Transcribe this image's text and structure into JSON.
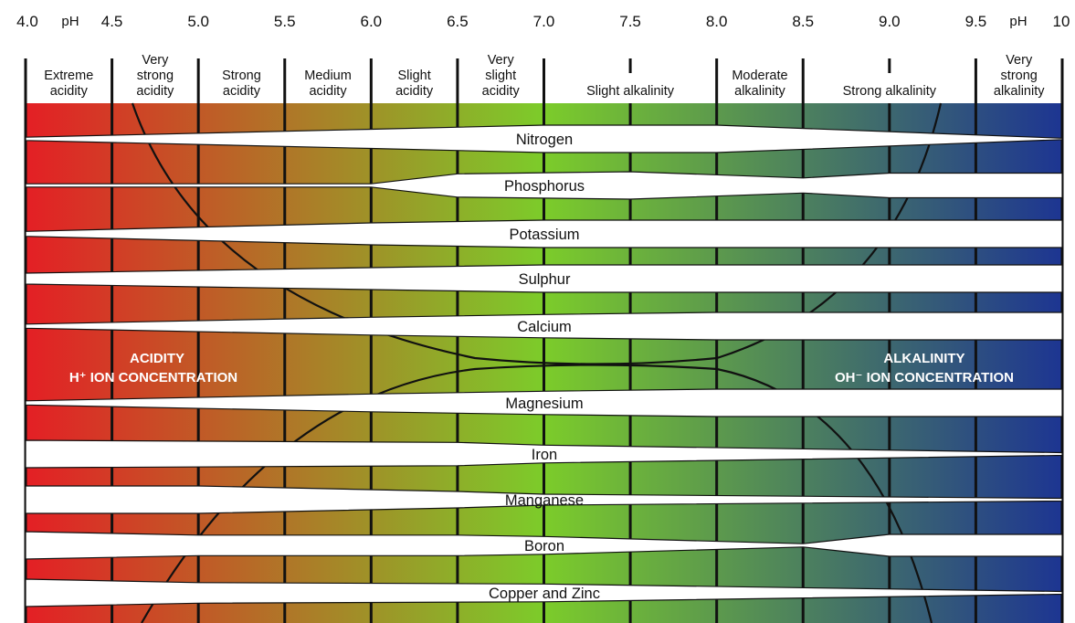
{
  "colors": {
    "acid": "#e41f25",
    "neutral": "#7ccc2a",
    "alkaline": "#1d3592",
    "band": "#ffffff",
    "line": "#111111",
    "inner_text": "#ffffff"
  },
  "ph_ticks": [
    {
      "value": 4.0,
      "label": "4.0"
    },
    {
      "value": 4.5,
      "label": "4.5"
    },
    {
      "value": 5.0,
      "label": "5.0"
    },
    {
      "value": 5.5,
      "label": "5.5"
    },
    {
      "value": 6.0,
      "label": "6.0"
    },
    {
      "value": 6.5,
      "label": "6.5"
    },
    {
      "value": 7.0,
      "label": "7.0"
    },
    {
      "value": 7.5,
      "label": "7.5"
    },
    {
      "value": 8.0,
      "label": "8.0"
    },
    {
      "value": 8.5,
      "label": "8.5"
    },
    {
      "value": 9.0,
      "label": "9.0"
    },
    {
      "value": 9.5,
      "label": "9.5"
    },
    {
      "value": 10.0,
      "label": "10"
    }
  ],
  "ph_labels": {
    "left": "pH",
    "right": "pH"
  },
  "categories": [
    {
      "from": 4.0,
      "to": 4.5,
      "lines": [
        "Extreme",
        "acidity"
      ]
    },
    {
      "from": 4.5,
      "to": 5.0,
      "lines": [
        "Very",
        "strong",
        "acidity"
      ]
    },
    {
      "from": 5.0,
      "to": 5.5,
      "lines": [
        "Strong",
        "acidity"
      ]
    },
    {
      "from": 5.5,
      "to": 6.0,
      "lines": [
        "Medium",
        "acidity"
      ]
    },
    {
      "from": 6.0,
      "to": 6.5,
      "lines": [
        "Slight",
        "acidity"
      ]
    },
    {
      "from": 6.5,
      "to": 7.0,
      "lines": [
        "Very",
        "slight",
        "acidity"
      ]
    },
    {
      "from": 7.0,
      "to": 8.0,
      "lines": [
        "Slight alkalinity"
      ]
    },
    {
      "from": 8.0,
      "to": 8.5,
      "lines": [
        "Moderate",
        "alkalinity"
      ]
    },
    {
      "from": 8.5,
      "to": 9.5,
      "lines": [
        "Strong alkalinity"
      ]
    },
    {
      "from": 9.5,
      "to": 10.0,
      "lines": [
        "Very",
        "strong",
        "alkalinity"
      ]
    }
  ],
  "acidity_label": {
    "line1": "ACIDITY",
    "line2": "H⁺ ION CONCENTRATION"
  },
  "alkalinity_label": {
    "line1": "ALKALINITY",
    "line2": "OH⁻ ION CONCENTRATION"
  },
  "nutrients": [
    {
      "name": "Nitrogen",
      "availability": [
        [
          4.0,
          0.12
        ],
        [
          6.0,
          0.7
        ],
        [
          7.0,
          1.0
        ],
        [
          8.0,
          1.0
        ],
        [
          10.0,
          0.05
        ]
      ]
    },
    {
      "name": "Phosphorus",
      "availability": [
        [
          4.0,
          0.12
        ],
        [
          6.0,
          0.12
        ],
        [
          6.5,
          0.85
        ],
        [
          7.5,
          1.0
        ],
        [
          8.5,
          0.55
        ],
        [
          9.0,
          0.9
        ],
        [
          10.0,
          0.9
        ]
      ]
    },
    {
      "name": "Potassium",
      "availability": [
        [
          4.0,
          0.18
        ],
        [
          6.0,
          0.8
        ],
        [
          7.0,
          1.0
        ],
        [
          10.0,
          1.0
        ]
      ]
    },
    {
      "name": "Sulphur",
      "availability": [
        [
          4.0,
          0.4
        ],
        [
          6.0,
          0.8
        ],
        [
          7.0,
          1.0
        ],
        [
          10.0,
          1.0
        ]
      ]
    },
    {
      "name": "Calcium",
      "availability": [
        [
          4.0,
          0.15
        ],
        [
          6.0,
          0.65
        ],
        [
          7.0,
          0.85
        ],
        [
          8.0,
          1.0
        ],
        [
          10.0,
          1.0
        ]
      ]
    },
    {
      "name": "Magnesium",
      "availability": [
        [
          4.0,
          0.15
        ],
        [
          6.0,
          0.65
        ],
        [
          7.0,
          0.85
        ],
        [
          8.0,
          1.0
        ],
        [
          10.0,
          1.0
        ]
      ]
    },
    {
      "name": "Iron",
      "availability": [
        [
          4.0,
          1.0
        ],
        [
          6.5,
          0.85
        ],
        [
          7.0,
          0.65
        ],
        [
          10.0,
          0.1
        ]
      ]
    },
    {
      "name": "Manganese",
      "availability": [
        [
          4.0,
          1.0
        ],
        [
          5.0,
          1.0
        ],
        [
          6.5,
          0.6
        ],
        [
          7.0,
          0.4
        ],
        [
          10.0,
          0.1
        ]
      ]
    },
    {
      "name": "Boron",
      "availability": [
        [
          4.0,
          1.0
        ],
        [
          5.0,
          0.75
        ],
        [
          6.5,
          0.75
        ],
        [
          7.0,
          0.65
        ],
        [
          8.5,
          0.12
        ],
        [
          9.0,
          0.8
        ],
        [
          10.0,
          0.8
        ]
      ]
    },
    {
      "name": "Copper and Zinc",
      "availability": [
        [
          4.0,
          1.0
        ],
        [
          5.0,
          0.75
        ],
        [
          7.0,
          0.65
        ],
        [
          10.0,
          0.1
        ]
      ]
    }
  ]
}
